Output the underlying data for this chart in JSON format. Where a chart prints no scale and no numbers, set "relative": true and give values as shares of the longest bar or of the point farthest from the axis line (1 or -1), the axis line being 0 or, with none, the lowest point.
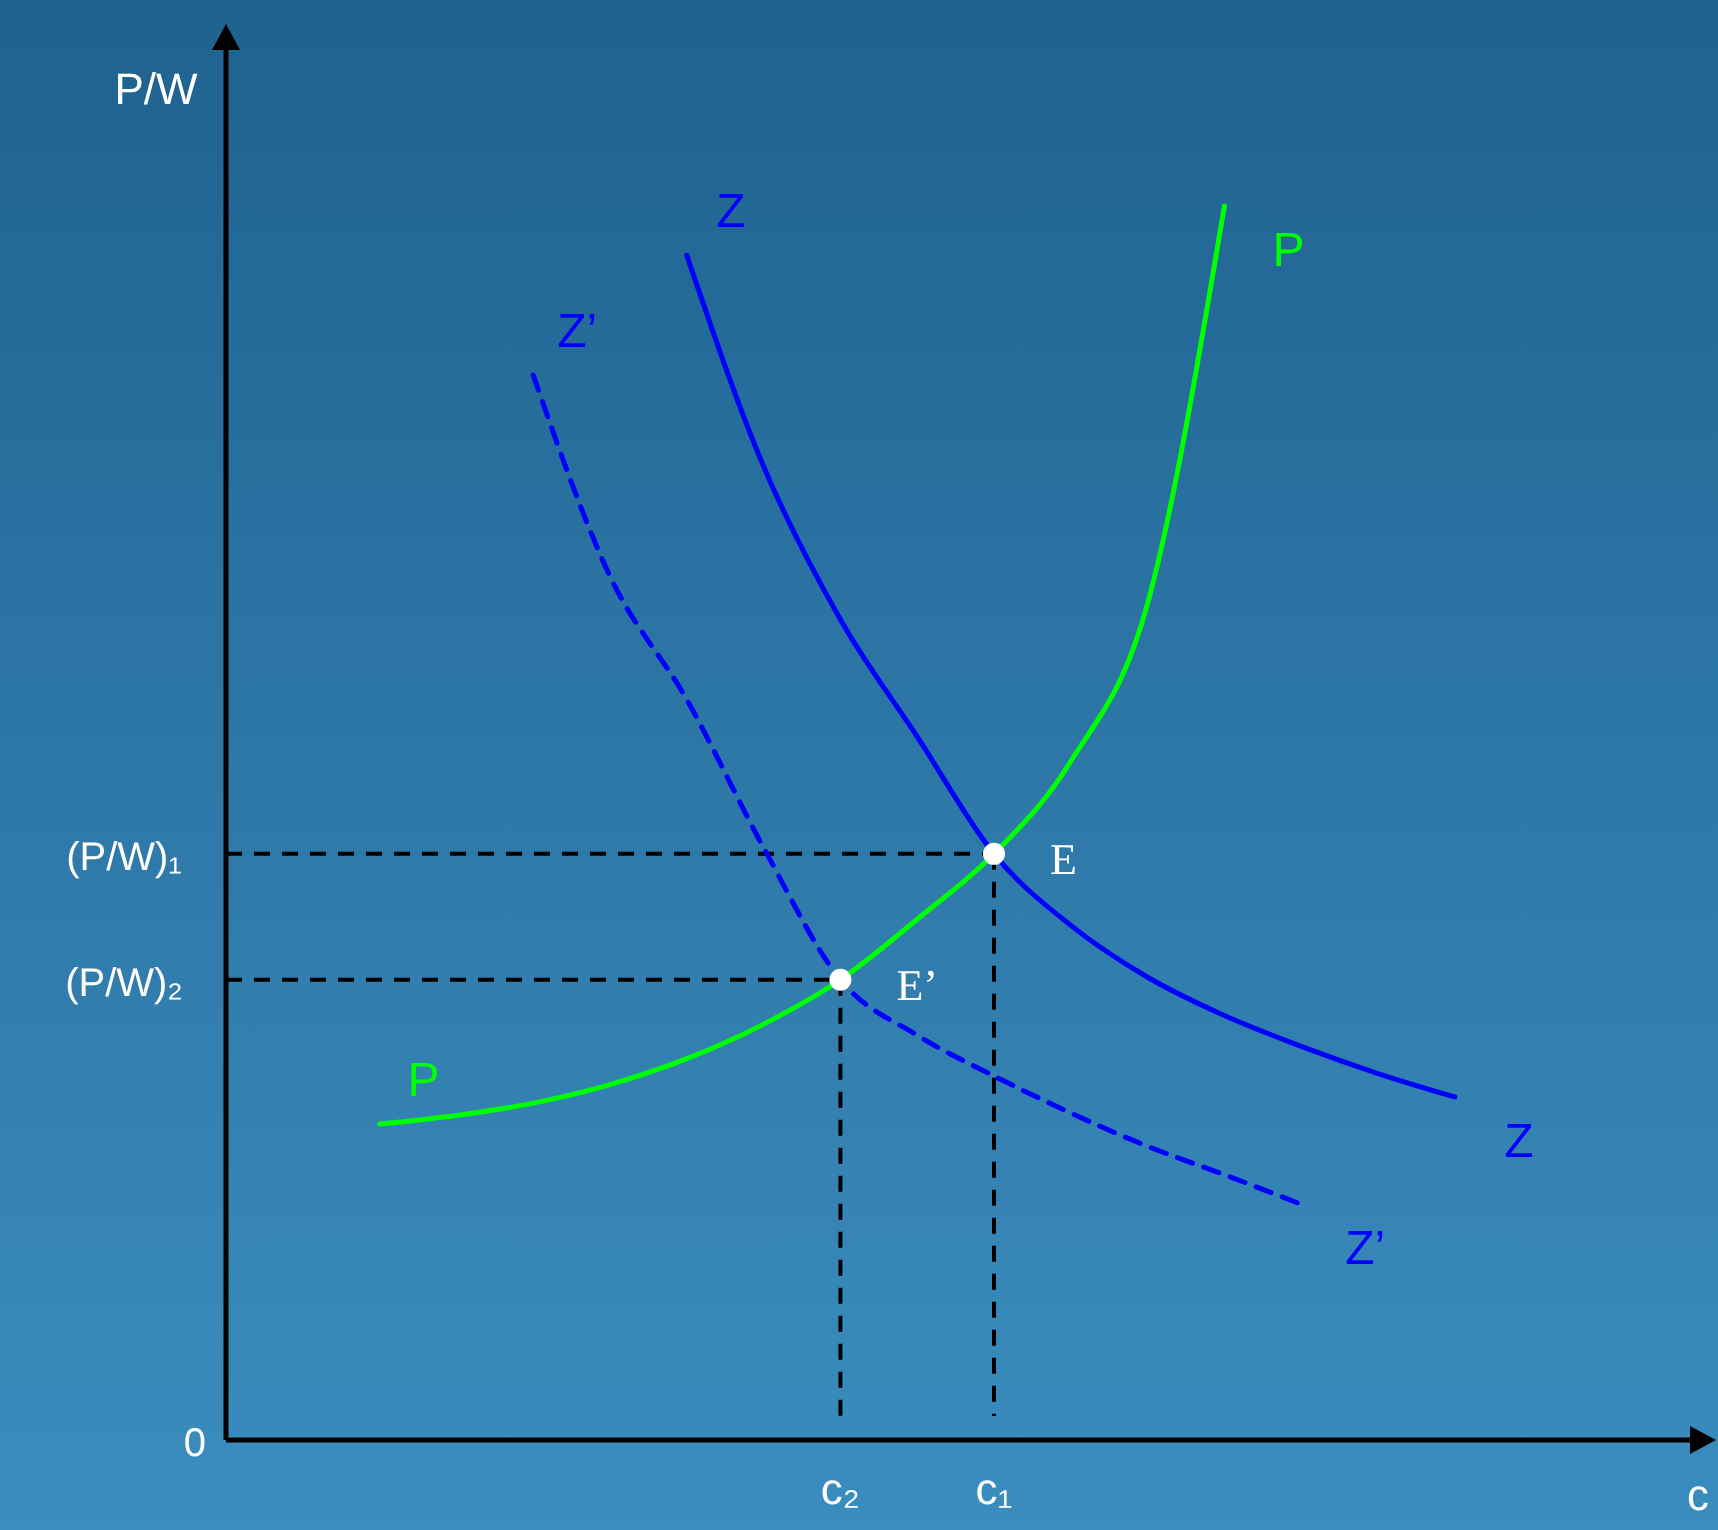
{
  "chart_data": {
    "type": "line",
    "relative": true,
    "xlabel": "c",
    "ylabel": "P/W",
    "categories": [
      null,
      null,
      null,
      null,
      null,
      null,
      null,
      null,
      "c₂",
      null,
      "c₁",
      null,
      null,
      null,
      null,
      null,
      null,
      null
    ],
    "series": [
      {
        "name": "P",
        "color": "#00ff00",
        "line_style": "solid",
        "values": [
          null,
          null,
          0.256,
          0.263,
          0.273,
          0.288,
          0.309,
          0.337,
          0.373,
          0.422,
          0.475,
          0.55,
          0.678,
          1,
          null,
          null,
          null,
          null
        ]
      },
      {
        "name": "Z",
        "color": "#0000ff",
        "line_style": "solid",
        "values": [
          null,
          null,
          null,
          null,
          null,
          null,
          0.96,
          0.789,
          0.665,
          0.57,
          0.475,
          0.417,
          0.375,
          0.344,
          0.319,
          0.297,
          0.278,
          null
        ]
      },
      {
        "name": "Z’",
        "color": "#0000ff",
        "line_style": "dashed",
        "values": [
          null,
          null,
          null,
          null,
          0.863,
          0.7,
          0.6,
          0.48,
          0.373,
          0.328,
          0.295,
          0.265,
          0.238,
          0.215,
          0.191,
          null,
          null,
          null
        ]
      },
      {
        "type": "scatter",
        "marker": "circle",
        "color": "#ffffff",
        "x": [
          "c₁",
          "c₂"
        ],
        "values": [
          0.475,
          0.373
        ]
      }
    ],
    "ref_lines": [
      {
        "axis": "y",
        "value": 0.475,
        "label": "(P/W)₁",
        "color": "#000000",
        "line_style": "dashed"
      },
      {
        "axis": "y",
        "value": 0.373,
        "label": "(P/W)₂",
        "color": "#000000",
        "line_style": "dashed"
      },
      {
        "axis": "x",
        "value": "c₁",
        "color": "#000000",
        "line_style": "dashed"
      },
      {
        "axis": "x",
        "value": "c₂",
        "color": "#000000",
        "line_style": "dashed"
      }
    ],
    "annotations": [
      "0",
      {
        "text": "E",
        "x": "c₁",
        "y": 0.475
      },
      {
        "text": "E’",
        "x": "c₂",
        "y": 0.373
      }
    ]
  }
}
